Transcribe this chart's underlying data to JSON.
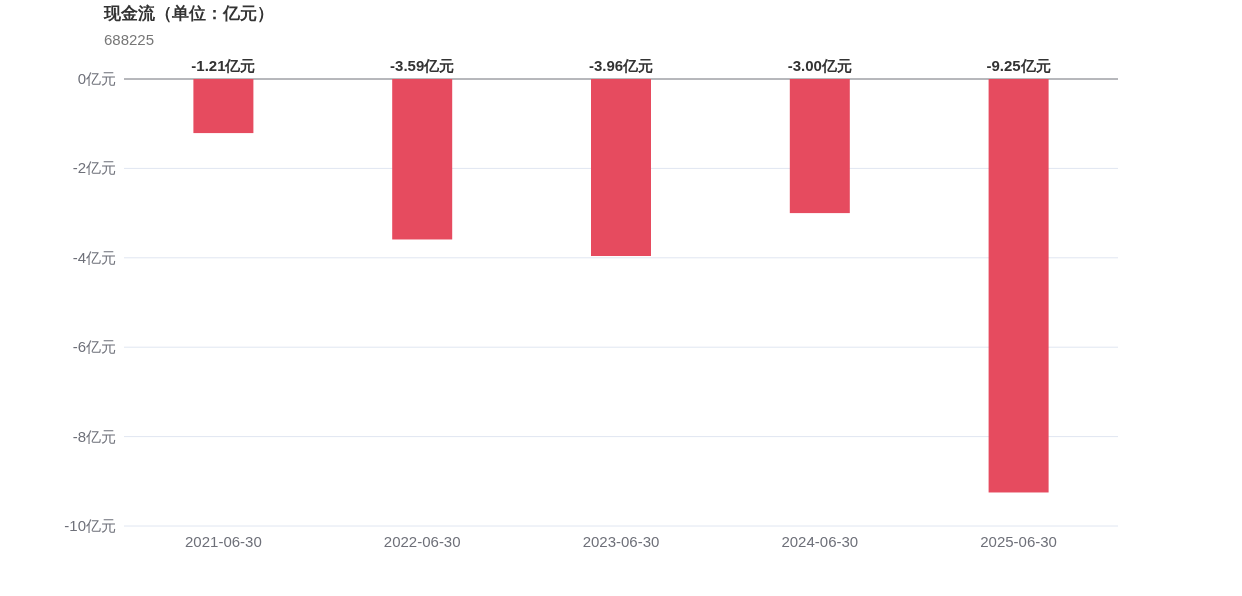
{
  "chart_data": {
    "type": "bar",
    "title": "现金流（单位：亿元）",
    "subtitle": "688225",
    "categories": [
      "2021-06-30",
      "2022-06-30",
      "2023-06-30",
      "2024-06-30",
      "2025-06-30"
    ],
    "values": [
      -1.21,
      -3.59,
      -3.96,
      -3.0,
      -9.25
    ],
    "value_labels": [
      "-1.21亿元",
      "-3.59亿元",
      "-3.96亿元",
      "-3.00亿元",
      "-9.25亿元"
    ],
    "color": "#e64b5f",
    "ylim": [
      -10,
      0
    ],
    "yticks": [
      {
        "value": 0,
        "label": "0亿元"
      },
      {
        "value": -2,
        "label": "-2亿元"
      },
      {
        "value": -4,
        "label": "-4亿元"
      },
      {
        "value": -6,
        "label": "-6亿元"
      },
      {
        "value": -8,
        "label": "-8亿元"
      },
      {
        "value": -10,
        "label": "-10亿元"
      }
    ],
    "grid": "y"
  }
}
